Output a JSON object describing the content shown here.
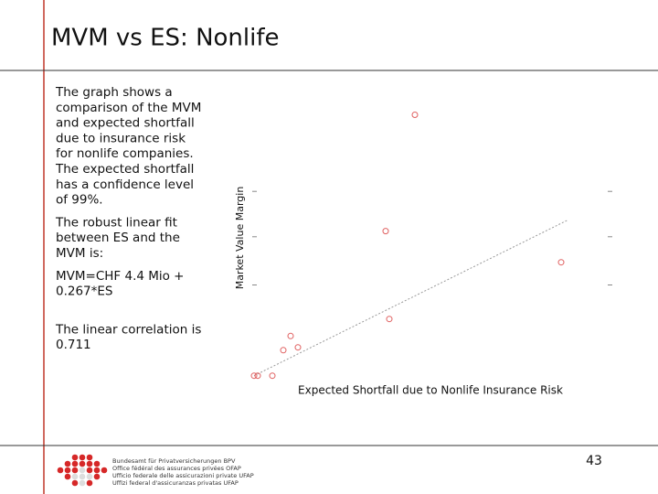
{
  "title": "MVM vs ES: Nonlife",
  "body": {
    "paragraphs": [
      [
        "The graph shows a",
        "comparison of the MVM",
        "and expected shortfall",
        "due to insurance risk",
        "for nonlife companies.",
        "The expected shortfall",
        "has a confidence level",
        "of 99%."
      ],
      [
        "The robust linear fit",
        "between ES and the",
        "MVM is:"
      ],
      [
        "MVM=CHF 4.4 Mio +",
        "0.267*ES"
      ],
      [
        "The linear correlation is",
        "0.711"
      ]
    ]
  },
  "chart_data": {
    "type": "scatter",
    "xlabel": "Expected Shortfall due to Nonlife Insurance Risk",
    "ylabel": "Market Value Margin",
    "x": [
      46,
      38,
      86,
      39,
      12,
      10,
      14,
      2,
      3,
      7
    ],
    "y": [
      95,
      54,
      43,
      23,
      17,
      12,
      13,
      3,
      3,
      3
    ],
    "color": "#e06060",
    "fit_line": {
      "x": [
        2,
        88
      ],
      "y": [
        3,
        58
      ]
    },
    "xlim": [
      0,
      100
    ],
    "ylim": [
      0,
      100
    ],
    "yticks": [
      35,
      52,
      68
    ]
  },
  "footer": {
    "org_lines": [
      "Bundesamt für Privatversicherungen BPV",
      "Office fédéral des assurances privées OFAP",
      "Ufficio federale delle assicurazioni private UFAP",
      "Uffizi federal d'assicuranzas privatas UFAP"
    ],
    "page_number": "43"
  }
}
